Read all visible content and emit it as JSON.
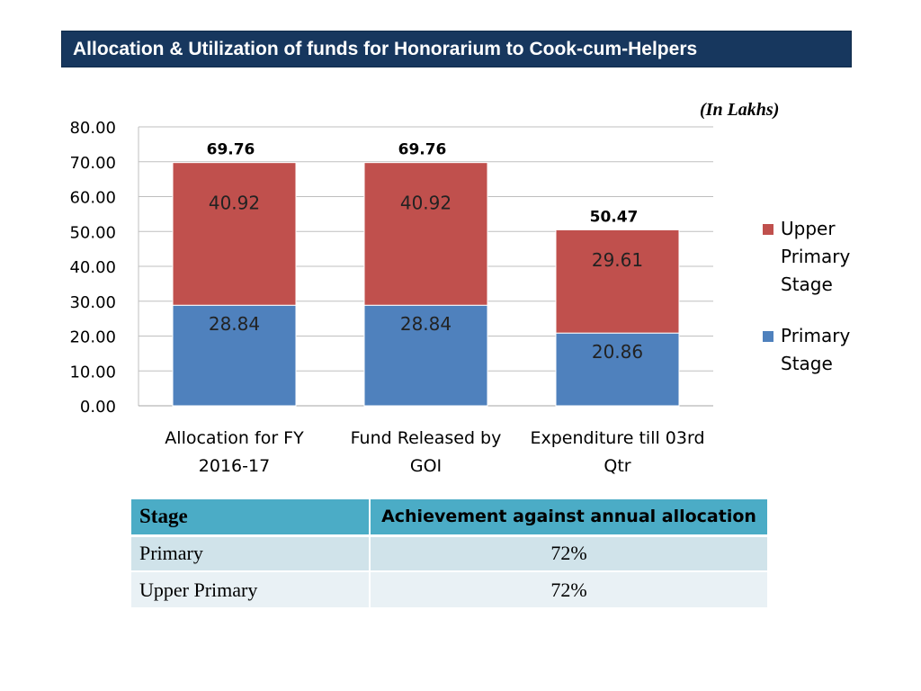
{
  "header": {
    "title": "Allocation & Utilization of funds for Honorarium to Cook-cum-Helpers"
  },
  "unit_note": "(In Lakhs)",
  "chart_data": {
    "type": "bar",
    "stacked": true,
    "categories": [
      "Allocation for FY 2016-17",
      "Fund Released by GOI",
      "Expenditure till 03rd Qtr"
    ],
    "category_lines": [
      [
        "Allocation for FY",
        "2016-17"
      ],
      [
        "Fund Released by",
        "GOI"
      ],
      [
        "Expenditure till 03rd",
        "Qtr"
      ]
    ],
    "series": [
      {
        "name": "Primary Stage",
        "values": [
          28.84,
          28.84,
          20.86
        ],
        "labels": [
          "28.84",
          "28.84",
          "20.86"
        ],
        "color": "#4f81bd"
      },
      {
        "name": "Upper Primary Stage",
        "values": [
          40.92,
          40.92,
          29.61
        ],
        "labels": [
          "40.92",
          "40.92",
          "29.61"
        ],
        "color": "#c0504d"
      }
    ],
    "totals": [
      "69.76",
      "69.76",
      "50.47"
    ],
    "ylim": [
      0,
      80
    ],
    "yticks": [
      "0.00",
      "10.00",
      "20.00",
      "30.00",
      "40.00",
      "50.00",
      "60.00",
      "70.00",
      "80.00"
    ],
    "legend_lines": [
      [
        "Upper",
        "Primary",
        "Stage"
      ],
      [
        "Primary",
        "Stage"
      ]
    ],
    "legend_position": "right",
    "grid": true
  },
  "table": {
    "headers": {
      "stage": "Stage",
      "achievement": "Achievement against annual allocation"
    },
    "rows": [
      {
        "stage": "Primary",
        "value": "72%"
      },
      {
        "stage": "Upper Primary",
        "value": "72%"
      }
    ]
  }
}
